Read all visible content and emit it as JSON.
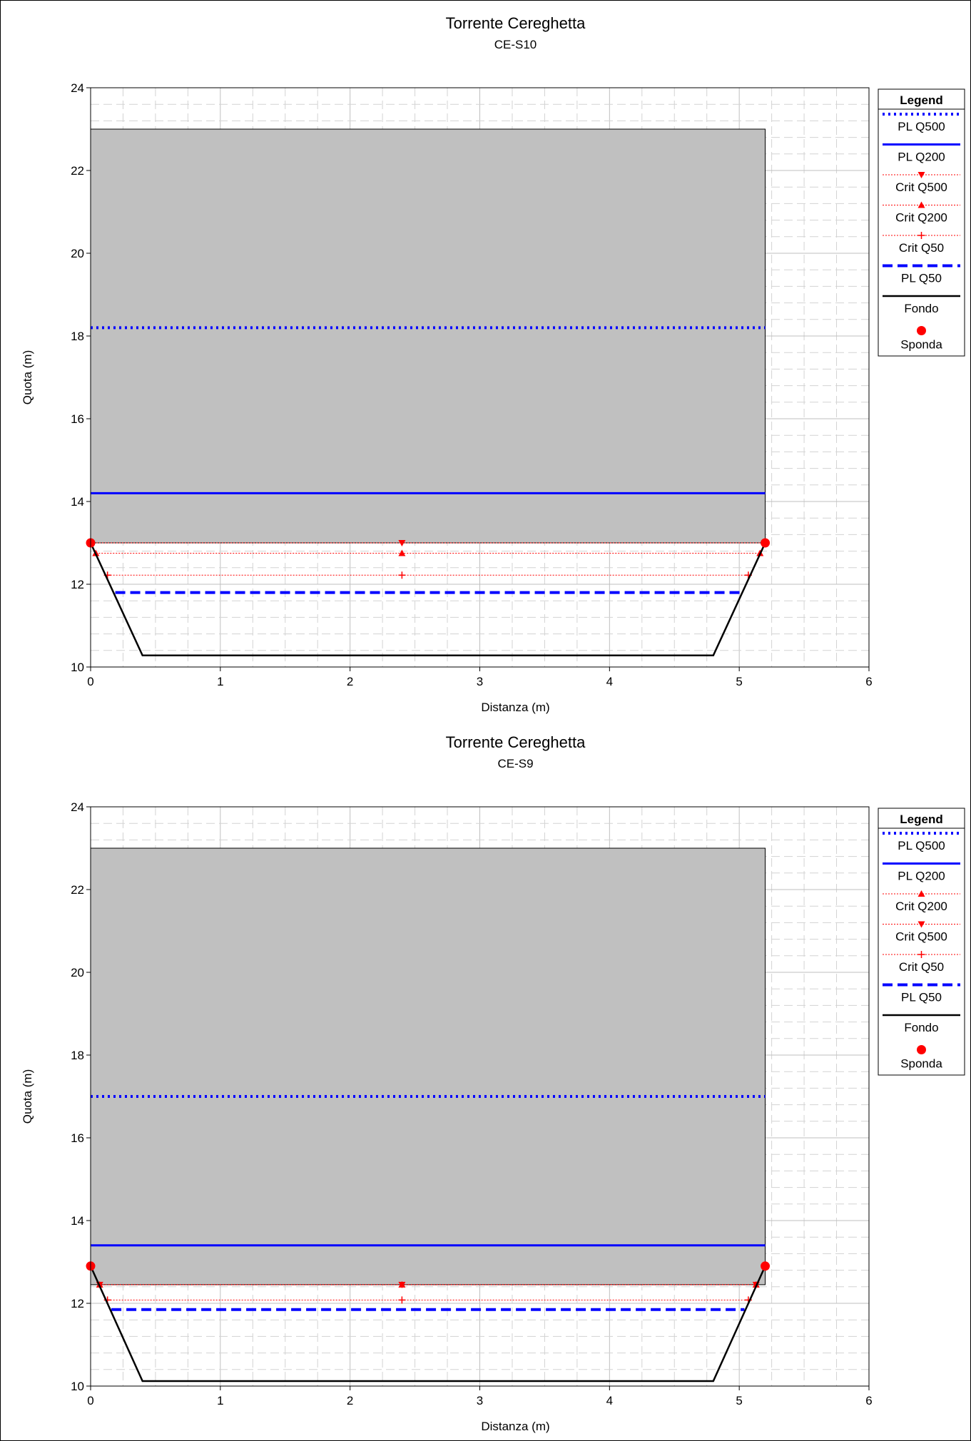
{
  "chart_data": [
    {
      "type": "line",
      "title": "Torrente Cereghetta",
      "subtitle": "CE-S10",
      "xlabel": "Distanza (m)",
      "ylabel": "Quota (m)",
      "xlim": [
        0,
        6
      ],
      "ylim": [
        10,
        24
      ],
      "xticks": [
        0,
        1,
        2,
        3,
        4,
        5,
        6
      ],
      "yticks": [
        10,
        12,
        14,
        16,
        18,
        20,
        22,
        24
      ],
      "grid": true,
      "legend_title": "Legend",
      "legend_position": "right",
      "obstruction": {
        "x": [
          0,
          5.2
        ],
        "y": [
          13.0,
          23.0
        ],
        "color": "#c0c0c0"
      },
      "series": [
        {
          "name": "PL Q500",
          "style": "dotted",
          "color": "#0000ff",
          "x": [
            0,
            5.2
          ],
          "y": [
            18.2,
            18.2
          ]
        },
        {
          "name": "PL Q200",
          "style": "solid",
          "color": "#0000ff",
          "x": [
            0,
            5.2
          ],
          "y": [
            14.2,
            14.2
          ]
        },
        {
          "name": "Crit Q500",
          "style": "crit",
          "marker": "triangle-down",
          "color": "#ff0000",
          "x": [
            0,
            2.4,
            5.2
          ],
          "y": [
            13.0,
            13.0,
            13.0
          ]
        },
        {
          "name": "Crit Q200",
          "style": "crit",
          "marker": "triangle-up",
          "color": "#ff0000",
          "x": [
            0.04,
            2.4,
            5.16
          ],
          "y": [
            12.75,
            12.75,
            12.75
          ]
        },
        {
          "name": "Crit Q50",
          "style": "crit",
          "marker": "plus",
          "color": "#ff0000",
          "x": [
            0.13,
            2.4,
            5.07
          ],
          "y": [
            12.22,
            12.22,
            12.22
          ]
        },
        {
          "name": "PL Q50",
          "style": "dashed",
          "color": "#0000ff",
          "x": [
            0.19,
            5.01
          ],
          "y": [
            11.8,
            11.8
          ]
        },
        {
          "name": "Fondo",
          "style": "ground",
          "color": "#000000",
          "x": [
            0,
            0.4,
            4.8,
            5.2
          ],
          "y": [
            13.0,
            10.28,
            10.28,
            13.0
          ]
        },
        {
          "name": "Sponda",
          "style": "bank",
          "color": "#ff0000",
          "x": [
            0,
            5.2
          ],
          "y": [
            13.0,
            13.0
          ]
        }
      ]
    },
    {
      "type": "line",
      "title": "Torrente Cereghetta",
      "subtitle": "CE-S9",
      "xlabel": "Distanza (m)",
      "ylabel": "Quota (m)",
      "xlim": [
        0,
        6
      ],
      "ylim": [
        10,
        24
      ],
      "xticks": [
        0,
        1,
        2,
        3,
        4,
        5,
        6
      ],
      "yticks": [
        10,
        12,
        14,
        16,
        18,
        20,
        22,
        24
      ],
      "grid": true,
      "legend_title": "Legend",
      "legend_position": "right",
      "obstruction": {
        "x": [
          0,
          5.2
        ],
        "y": [
          12.45,
          23.0
        ],
        "color": "#c0c0c0"
      },
      "series": [
        {
          "name": "PL Q500",
          "style": "dotted",
          "color": "#0000ff",
          "x": [
            0,
            5.2
          ],
          "y": [
            17.0,
            17.0
          ]
        },
        {
          "name": "PL Q200",
          "style": "solid",
          "color": "#0000ff",
          "x": [
            0,
            5.2
          ],
          "y": [
            13.4,
            13.4
          ]
        },
        {
          "name": "Crit Q200",
          "style": "crit",
          "marker": "triangle-up",
          "color": "#ff0000",
          "x": [
            0.07,
            2.4,
            5.13
          ],
          "y": [
            12.45,
            12.45,
            12.45
          ]
        },
        {
          "name": "Crit Q500",
          "style": "crit",
          "marker": "triangle-down",
          "color": "#ff0000",
          "x": [
            0.07,
            2.4,
            5.13
          ],
          "y": [
            12.45,
            12.45,
            12.45
          ]
        },
        {
          "name": "Crit Q50",
          "style": "crit",
          "marker": "plus",
          "color": "#ff0000",
          "x": [
            0.13,
            2.4,
            5.07
          ],
          "y": [
            12.08,
            12.08,
            12.08
          ]
        },
        {
          "name": "PL Q50",
          "style": "dashed",
          "color": "#0000ff",
          "x": [
            0.16,
            5.04
          ],
          "y": [
            11.85,
            11.85
          ]
        },
        {
          "name": "Fondo",
          "style": "ground",
          "color": "#000000",
          "x": [
            0,
            0.4,
            4.8,
            5.2
          ],
          "y": [
            12.9,
            10.12,
            10.12,
            12.9
          ]
        },
        {
          "name": "Sponda",
          "style": "bank",
          "color": "#ff0000",
          "x": [
            0,
            5.2
          ],
          "y": [
            12.9,
            12.9
          ]
        }
      ]
    }
  ]
}
